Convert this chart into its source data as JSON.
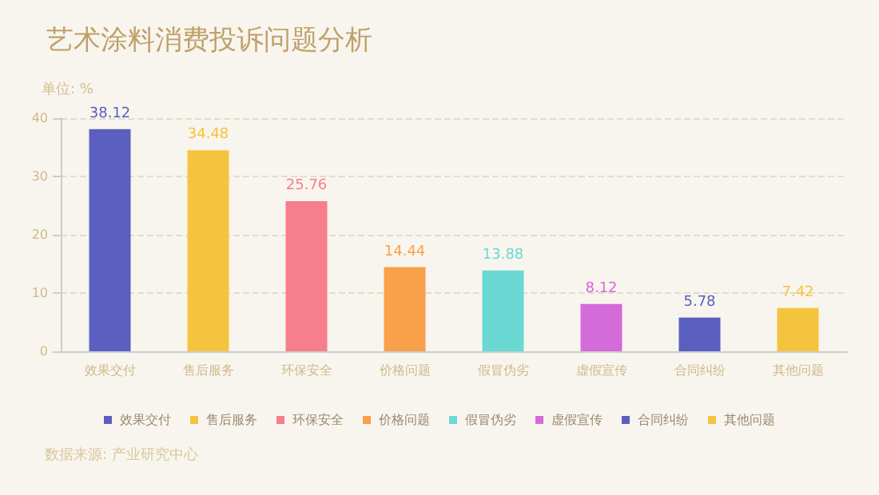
{
  "chart_data": {
    "type": "bar",
    "title": "艺术涂料消费投诉问题分析",
    "ylabel": "单位: %",
    "categories": [
      "效果交付",
      "售后服务",
      "环保安全",
      "价格问题",
      "假冒伪劣",
      "虚假宣传",
      "合同纠纷",
      "其他问题"
    ],
    "series": [
      {
        "name": "效果交付",
        "color": "#5b5fbf",
        "values": [
          38.12,
          null,
          null,
          null,
          null,
          null,
          null,
          null
        ]
      },
      {
        "name": "售后服务",
        "color": "#f5c43f",
        "values": [
          null,
          34.48,
          null,
          null,
          null,
          null,
          null,
          null
        ]
      },
      {
        "name": "环保安全",
        "color": "#f67f8b",
        "values": [
          null,
          null,
          25.76,
          null,
          null,
          null,
          null,
          null
        ]
      },
      {
        "name": "价格问题",
        "color": "#f8a04a",
        "values": [
          null,
          null,
          null,
          14.44,
          null,
          null,
          null,
          null
        ]
      },
      {
        "name": "假冒伪劣",
        "color": "#6ad9d3",
        "values": [
          null,
          null,
          null,
          null,
          13.88,
          null,
          null,
          null
        ]
      },
      {
        "name": "虚假宣传",
        "color": "#d56ad9",
        "values": [
          null,
          null,
          null,
          null,
          null,
          8.12,
          null,
          null
        ]
      },
      {
        "name": "合同纠纷",
        "color": "#5b5fbf",
        "values": [
          null,
          null,
          null,
          null,
          null,
          null,
          5.78,
          null
        ]
      },
      {
        "name": "其他问题",
        "color": "#f5c43f",
        "values": [
          null,
          null,
          null,
          null,
          null,
          null,
          null,
          7.42
        ]
      }
    ],
    "ylim": [
      0,
      40
    ],
    "yticks": [
      0,
      10,
      20,
      30,
      40
    ],
    "grid": "y",
    "legend": "bottom",
    "data_labels": true,
    "annotations": [
      "数据来源: 产业研究中心"
    ]
  }
}
